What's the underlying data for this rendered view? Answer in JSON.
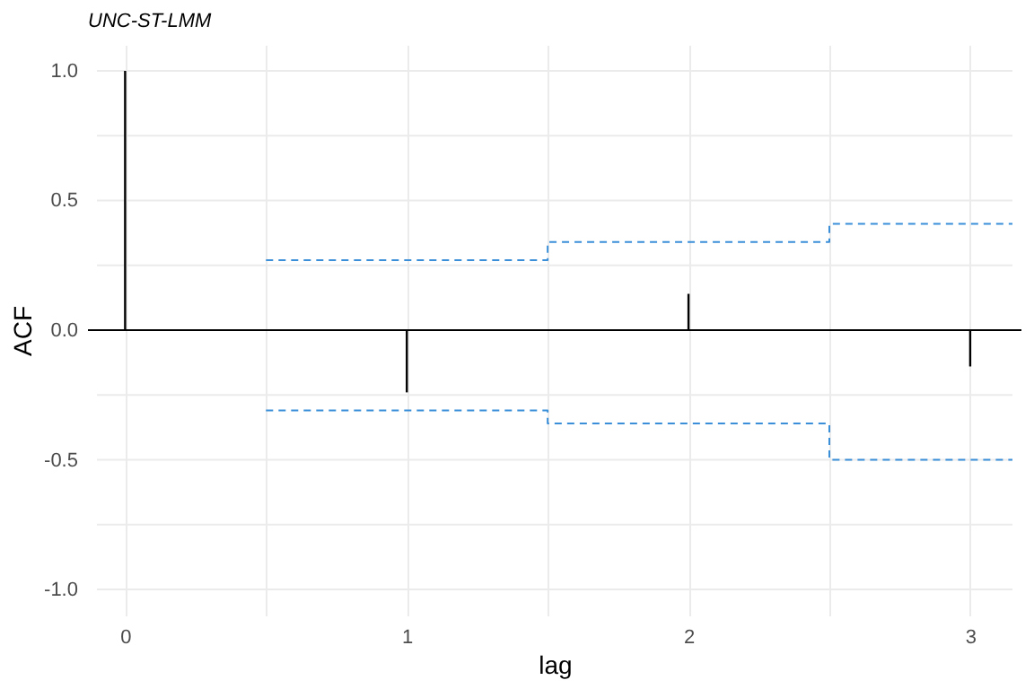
{
  "chart_data": {
    "type": "bar",
    "title": "UNC-ST-LMM",
    "xlabel": "lag",
    "ylabel": "ACF",
    "xlim": [
      -0.1,
      3.15
    ],
    "xticks": [
      0,
      {
        "value": 0.5,
        "label": null
      },
      1,
      {
        "value": 1.5,
        "label": null
      },
      2,
      {
        "value": 2.5,
        "label": null
      },
      3
    ],
    "ylim": [
      -1.1,
      1.1
    ],
    "yticks": [
      {
        "value": -1,
        "label": "-1.0"
      },
      {
        "value": -0.75,
        "label": null
      },
      {
        "value": -0.5,
        "label": "-0.5"
      },
      {
        "value": -0.25,
        "label": null
      },
      {
        "value": 0,
        "label": "0.0"
      },
      {
        "value": 0.25,
        "label": null
      },
      {
        "value": 0.5,
        "label": "0.5"
      },
      {
        "value": 0.75,
        "label": null
      },
      {
        "value": 1,
        "label": "1.0"
      }
    ],
    "grid": true,
    "series": [
      {
        "color": "#000000",
        "x": [
          0,
          1,
          2,
          3
        ],
        "values": [
          1,
          -0.24,
          0.14,
          -0.14
        ]
      },
      {
        "type": "step",
        "color": "#3b8fd9",
        "line_style": "dashed",
        "x": [
          0.5,
          1.5,
          2.5,
          3.15
        ],
        "values": [
          0.27,
          0.34,
          0.41,
          0.41
        ]
      },
      {
        "type": "step",
        "color": "#3b8fd9",
        "line_style": "dashed",
        "x": [
          0.5,
          1.5,
          2.5,
          3.15
        ],
        "values": [
          -0.31,
          -0.36,
          -0.5,
          -0.5
        ]
      }
    ],
    "ref_lines": [
      {
        "axis": "y",
        "value": 0,
        "color": "#000000"
      }
    ]
  }
}
